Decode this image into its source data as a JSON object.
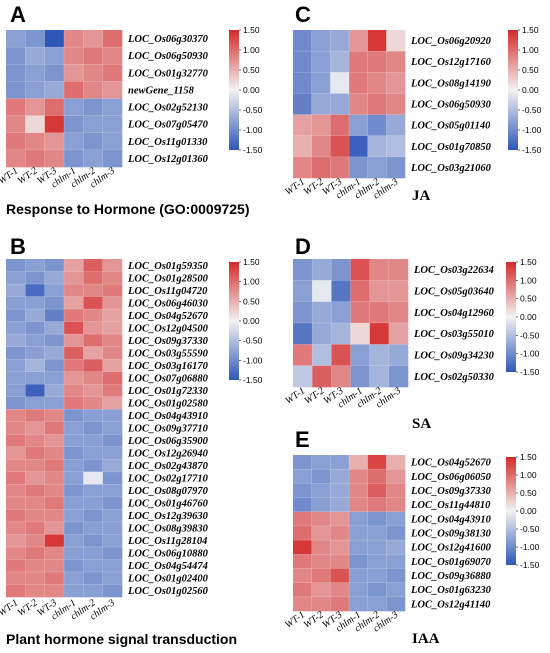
{
  "colorscale": {
    "low": "#2f57b8",
    "mid": "#f2f2f2",
    "high": "#d42a2a",
    "range": [
      -1.5,
      1.5
    ]
  },
  "colorbar_ticks": [
    "1.50",
    "1.00",
    "0.50",
    "0.00",
    "-0.50",
    "-1.00",
    "-1.50"
  ],
  "chart_data": [
    {
      "type": "heatmap",
      "panel": "A",
      "title": "Response to Hormone (GO:0009725)",
      "columns": [
        "WT-1",
        "WT-2",
        "WT-3",
        "chlm-1",
        "chlm-2",
        "chlm-3"
      ],
      "rows": [
        "LOC_Os06g30370",
        "LOC_Os06g50930",
        "LOC_Os01g32770",
        "newGene_1158",
        "LOC_Os02g52130",
        "LOC_Os07g05470",
        "LOC_Os11g01330",
        "LOC_Os12g01360"
      ],
      "values": [
        [
          -0.8,
          -0.9,
          -1.5,
          0.8,
          0.7,
          1.0
        ],
        [
          -0.9,
          -0.7,
          -0.8,
          0.8,
          0.9,
          0.8
        ],
        [
          -0.9,
          -0.8,
          -0.9,
          0.7,
          0.8,
          0.9
        ],
        [
          -0.9,
          -0.8,
          -0.7,
          1.0,
          0.8,
          0.7
        ],
        [
          0.9,
          0.7,
          1.0,
          -0.8,
          -0.9,
          -0.8
        ],
        [
          0.8,
          0.2,
          1.4,
          -0.9,
          -0.8,
          -0.8
        ],
        [
          0.9,
          0.8,
          0.7,
          -0.8,
          -0.9,
          -0.8
        ],
        [
          0.8,
          0.9,
          0.8,
          -0.9,
          -0.8,
          -0.9
        ]
      ]
    },
    {
      "type": "heatmap",
      "panel": "B",
      "title": "Plant hormone signal transduction",
      "columns": [
        "WT-1",
        "WT-2",
        "WT-3",
        "chlm-1",
        "chlm-2",
        "chlm-3"
      ],
      "rows": [
        "LOC_Os01g59350",
        "LOC_Os01g28500",
        "LOC_Os11g04720",
        "LOC_Os06g46030",
        "LOC_Os04g52670",
        "LOC_Os12g04500",
        "LOC_Os09g37330",
        "LOC_Os03g55590",
        "LOC_Os03g16170",
        "LOC_Os07g06880",
        "LOC_Os01g72330",
        "LOC_Os01g02580",
        "LOC_Os04g43910",
        "LOC_Os09g37710",
        "LOC_Os06g35900",
        "LOC_Os12g26940",
        "LOC_Os02g43870",
        "LOC_Os02g17710",
        "LOC_Os08g07970",
        "LOC_Os01g46760",
        "LOC_Os12g39630",
        "LOC_Os08g39830",
        "LOC_Os11g28104",
        "LOC_Os06g10880",
        "LOC_Os04g54474",
        "LOC_Os01g02400",
        "LOC_Os01g02560"
      ],
      "values": [
        [
          -0.9,
          -0.8,
          -0.9,
          0.6,
          1.1,
          0.7
        ],
        [
          -0.8,
          -0.9,
          -0.7,
          0.7,
          1.0,
          0.8
        ],
        [
          -0.7,
          -1.3,
          -0.8,
          0.8,
          0.8,
          0.9
        ],
        [
          -0.8,
          -0.8,
          -0.9,
          0.6,
          1.2,
          0.7
        ],
        [
          -0.9,
          -0.7,
          -1.1,
          0.9,
          0.8,
          0.6
        ],
        [
          -0.8,
          -0.9,
          -0.7,
          1.2,
          0.7,
          0.6
        ],
        [
          -0.7,
          -0.8,
          -0.9,
          0.7,
          1.0,
          0.8
        ],
        [
          -0.9,
          -0.8,
          -0.7,
          1.1,
          0.6,
          0.8
        ],
        [
          -0.8,
          -0.6,
          -0.9,
          0.9,
          1.1,
          0.6
        ],
        [
          -0.8,
          -0.8,
          -0.8,
          0.7,
          0.8,
          1.0
        ],
        [
          -0.8,
          -1.4,
          -0.7,
          0.8,
          0.7,
          0.9
        ],
        [
          -0.9,
          -0.8,
          -0.8,
          0.9,
          0.8,
          0.6
        ],
        [
          0.8,
          0.9,
          0.8,
          -0.9,
          -0.8,
          -0.8
        ],
        [
          0.8,
          0.7,
          0.9,
          -0.8,
          -0.9,
          -0.8
        ],
        [
          0.9,
          0.8,
          0.7,
          -0.8,
          -0.8,
          -0.9
        ],
        [
          0.7,
          0.9,
          0.8,
          -0.9,
          -0.8,
          -0.8
        ],
        [
          0.8,
          0.8,
          0.9,
          -0.8,
          -0.9,
          -0.7
        ],
        [
          0.9,
          0.7,
          0.8,
          -0.8,
          -0.1,
          -0.9
        ],
        [
          0.8,
          0.9,
          0.8,
          -0.9,
          -0.8,
          -0.8
        ],
        [
          0.8,
          0.8,
          0.9,
          -0.8,
          -0.8,
          -0.9
        ],
        [
          0.9,
          0.8,
          0.8,
          -0.8,
          -0.9,
          -0.8
        ],
        [
          0.8,
          0.9,
          0.7,
          -0.9,
          -0.8,
          -0.8
        ],
        [
          0.7,
          0.8,
          1.4,
          -0.8,
          -0.9,
          -0.8
        ],
        [
          0.8,
          0.9,
          0.8,
          -0.8,
          -0.8,
          -0.9
        ],
        [
          0.9,
          0.8,
          0.8,
          -0.9,
          -0.8,
          -0.8
        ],
        [
          0.8,
          0.8,
          0.9,
          -0.8,
          -0.9,
          -0.8
        ],
        [
          0.9,
          0.8,
          0.8,
          -0.8,
          -0.8,
          -0.9
        ]
      ]
    },
    {
      "type": "heatmap",
      "panel": "C",
      "title": "JA",
      "columns": [
        "WT-1",
        "WT-2",
        "WT-3",
        "chlm-1",
        "chlm-2",
        "chlm-3"
      ],
      "rows": [
        "LOC_Os06g20920",
        "LOC_Os12g17160",
        "LOC_Os08g14190",
        "LOC_Os06g50930",
        "LOC_Os05g01140",
        "LOC_Os01g70850",
        "LOC_Os03g21060"
      ],
      "values": [
        [
          -1.0,
          -0.8,
          -0.7,
          0.7,
          1.4,
          0.2
        ],
        [
          -1.0,
          -0.8,
          -0.6,
          0.9,
          0.9,
          0.8
        ],
        [
          -1.0,
          -0.8,
          -0.1,
          0.9,
          0.8,
          0.7
        ],
        [
          -1.1,
          -0.7,
          -0.7,
          0.8,
          0.9,
          0.8
        ],
        [
          0.6,
          0.7,
          1.0,
          -0.8,
          -1.0,
          -0.7
        ],
        [
          0.5,
          0.8,
          1.2,
          -1.4,
          -0.6,
          -0.5
        ],
        [
          0.8,
          1.0,
          0.9,
          -0.9,
          -0.8,
          -0.9
        ]
      ]
    },
    {
      "type": "heatmap",
      "panel": "D",
      "title": "SA",
      "columns": [
        "WT-1",
        "WT-2",
        "WT-3",
        "chlm-1",
        "chlm-2",
        "chlm-3"
      ],
      "rows": [
        "LOC_Os03g22634",
        "LOC_Os05g03640",
        "LOC_Os04g12960",
        "LOC_Os03g55010",
        "LOC_Os09g34230",
        "LOC_Os02g50330"
      ],
      "values": [
        [
          -0.9,
          -0.7,
          -0.9,
          1.2,
          0.8,
          0.8
        ],
        [
          -0.8,
          -0.1,
          -1.2,
          1.0,
          0.7,
          0.7
        ],
        [
          -0.9,
          -0.7,
          -0.8,
          0.9,
          0.9,
          0.8
        ],
        [
          -1.2,
          -0.7,
          -0.6,
          0.2,
          1.4,
          0.6
        ],
        [
          0.9,
          -0.5,
          1.2,
          -0.8,
          -0.6,
          -0.7
        ],
        [
          -0.4,
          1.1,
          0.8,
          -0.9,
          -0.6,
          -0.9
        ]
      ]
    },
    {
      "type": "heatmap",
      "panel": "E",
      "title": "IAA",
      "columns": [
        "WT-1",
        "WT-2",
        "WT-3",
        "chlm-1",
        "chlm-2",
        "chlm-3"
      ],
      "rows": [
        "LOC_Os04g52670",
        "LOC_Os06g06050",
        "LOC_Os09g37330",
        "LOC_Os11g44810",
        "LOC_Os04g43910",
        "LOC_Os09g38130",
        "LOC_Os12g41600",
        "LOC_Os01g69070",
        "LOC_Os09g36880",
        "LOC_Os01g63230",
        "LOC_Os12g41140"
      ],
      "values": [
        [
          -0.9,
          -0.8,
          -0.8,
          0.5,
          1.3,
          0.5
        ],
        [
          -0.8,
          -0.9,
          -0.7,
          0.8,
          1.0,
          0.7
        ],
        [
          -0.9,
          -0.8,
          -0.7,
          0.8,
          1.1,
          0.8
        ],
        [
          -1.0,
          -0.8,
          -0.7,
          0.8,
          0.9,
          0.8
        ],
        [
          0.9,
          0.8,
          0.7,
          -0.8,
          -0.9,
          -0.8
        ],
        [
          1.0,
          0.7,
          0.8,
          -0.8,
          -0.8,
          -0.9
        ],
        [
          1.4,
          0.8,
          0.7,
          -0.8,
          -0.8,
          -0.7
        ],
        [
          0.9,
          0.8,
          0.8,
          -0.9,
          -0.8,
          -0.8
        ],
        [
          0.8,
          0.9,
          1.2,
          -0.8,
          -0.8,
          -0.9
        ],
        [
          0.9,
          0.7,
          0.8,
          -0.8,
          -0.9,
          -0.8
        ],
        [
          0.8,
          0.8,
          0.9,
          -0.8,
          -0.8,
          -0.9
        ]
      ]
    }
  ]
}
